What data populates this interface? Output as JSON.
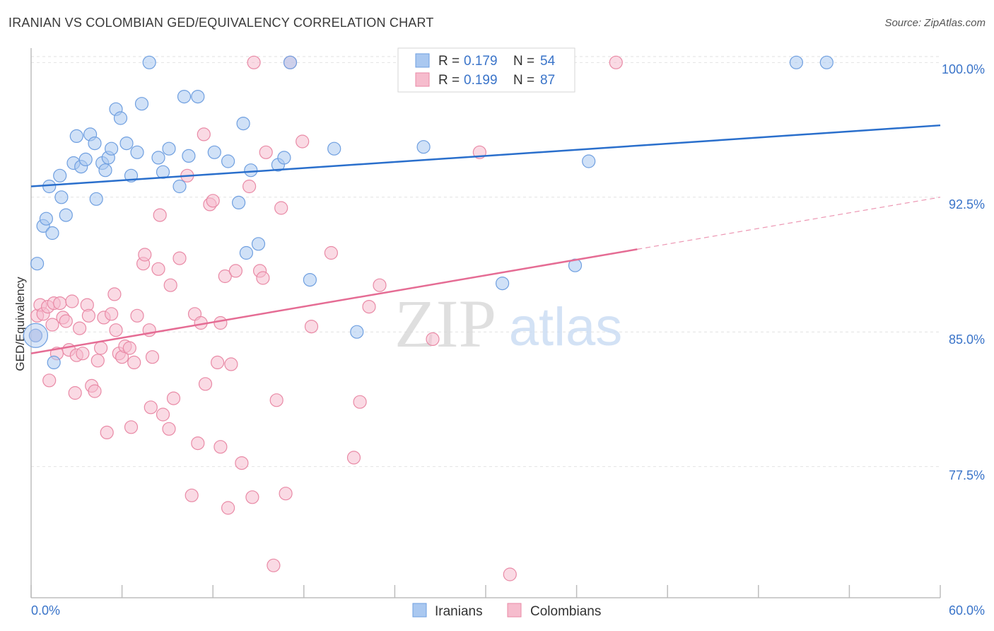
{
  "header": {
    "title": "IRANIAN VS COLOMBIAN GED/EQUIVALENCY CORRELATION CHART",
    "source": "Source: ZipAtlas.com"
  },
  "watermark": {
    "zip": "ZIP",
    "atlas": "atlas"
  },
  "legend_top": {
    "rows": [
      {
        "r_label": "R = ",
        "r_value": "0.179",
        "n_label": "N = ",
        "n_value": "54"
      },
      {
        "r_label": "R = ",
        "r_value": "0.199",
        "n_label": "N = ",
        "n_value": "87"
      }
    ]
  },
  "legend_bottom": {
    "items": [
      "Iranians",
      "Colombians"
    ]
  },
  "colors": {
    "blue_fill": "#aac8f0",
    "blue_stroke": "#6f9fe0",
    "blue_line": "#2a6fcc",
    "pink_fill": "#f6bccd",
    "pink_stroke": "#e98aa6",
    "pink_line": "#e56c94",
    "label_blue": "#3a74c9",
    "grid": "#e2e2e2"
  },
  "chart_data": {
    "type": "scatter",
    "title": "IRANIAN VS COLOMBIAN GED/EQUIVALENCY CORRELATION CHART",
    "xlabel": "",
    "ylabel": "GED/Equivalency",
    "xlim": [
      0,
      60
    ],
    "ylim": [
      70.2,
      100.8
    ],
    "x_tick_labels": [
      "0.0%",
      "60.0%"
    ],
    "y_ticks": [
      77.5,
      85.0,
      92.5,
      100.0
    ],
    "y_tick_labels": [
      "77.5%",
      "85.0%",
      "92.5%",
      "100.0%"
    ],
    "grid": true,
    "legend_position": "top-center",
    "series": [
      {
        "name": "Iranians",
        "R": 0.179,
        "N": 54,
        "trend": {
          "x": [
            0,
            60
          ],
          "y": [
            93.1,
            96.5
          ]
        },
        "points": [
          [
            0.4,
            88.8
          ],
          [
            0.8,
            90.9
          ],
          [
            1.0,
            91.3
          ],
          [
            1.2,
            93.1
          ],
          [
            1.4,
            90.5
          ],
          [
            1.5,
            83.3
          ],
          [
            1.9,
            93.7
          ],
          [
            2.0,
            92.5
          ],
          [
            2.3,
            91.5
          ],
          [
            2.8,
            94.4
          ],
          [
            3.0,
            95.9
          ],
          [
            3.3,
            94.2
          ],
          [
            3.6,
            94.6
          ],
          [
            3.9,
            96.0
          ],
          [
            4.2,
            95.5
          ],
          [
            4.3,
            92.4
          ],
          [
            4.7,
            94.4
          ],
          [
            4.9,
            94.0
          ],
          [
            5.1,
            94.7
          ],
          [
            5.3,
            95.2
          ],
          [
            5.6,
            97.4
          ],
          [
            5.9,
            96.9
          ],
          [
            6.3,
            95.5
          ],
          [
            6.6,
            93.7
          ],
          [
            7.0,
            95.0
          ],
          [
            7.3,
            97.7
          ],
          [
            7.8,
            100.0
          ],
          [
            8.4,
            94.7
          ],
          [
            8.7,
            93.9
          ],
          [
            9.1,
            95.2
          ],
          [
            9.8,
            93.1
          ],
          [
            10.1,
            98.1
          ],
          [
            10.4,
            94.8
          ],
          [
            11.0,
            98.1
          ],
          [
            12.1,
            95.0
          ],
          [
            13.0,
            94.5
          ],
          [
            13.7,
            92.2
          ],
          [
            14.0,
            96.6
          ],
          [
            14.5,
            94.0
          ],
          [
            15.0,
            89.9
          ],
          [
            14.2,
            89.4
          ],
          [
            16.3,
            94.3
          ],
          [
            16.7,
            94.7
          ],
          [
            17.1,
            100.0
          ],
          [
            18.4,
            87.9
          ],
          [
            20.0,
            95.2
          ],
          [
            21.5,
            85.0
          ],
          [
            25.9,
            95.3
          ],
          [
            31.1,
            87.7
          ],
          [
            35.9,
            88.7
          ],
          [
            36.8,
            94.5
          ],
          [
            50.5,
            100.0
          ],
          [
            52.5,
            100.0
          ],
          [
            0.3,
            84.8
          ]
        ]
      },
      {
        "name": "Colombians",
        "R": 0.199,
        "N": 87,
        "trend": {
          "x": [
            0,
            40
          ],
          "y": [
            83.8,
            89.6
          ]
        },
        "trend_dashed": {
          "x": [
            40,
            60
          ],
          "y": [
            89.6,
            92.5
          ]
        },
        "points": [
          [
            0.3,
            84.8
          ],
          [
            0.4,
            85.9
          ],
          [
            0.6,
            86.5
          ],
          [
            0.8,
            86.0
          ],
          [
            1.1,
            86.4
          ],
          [
            1.2,
            82.3
          ],
          [
            1.4,
            85.4
          ],
          [
            1.5,
            86.6
          ],
          [
            1.7,
            83.8
          ],
          [
            1.9,
            86.6
          ],
          [
            2.1,
            85.8
          ],
          [
            2.3,
            85.6
          ],
          [
            2.5,
            84.0
          ],
          [
            2.7,
            86.7
          ],
          [
            2.9,
            81.6
          ],
          [
            3.0,
            83.7
          ],
          [
            3.2,
            85.2
          ],
          [
            3.4,
            83.8
          ],
          [
            3.7,
            86.5
          ],
          [
            3.8,
            85.9
          ],
          [
            4.0,
            82.0
          ],
          [
            4.2,
            81.7
          ],
          [
            4.4,
            83.4
          ],
          [
            4.6,
            84.1
          ],
          [
            4.8,
            85.8
          ],
          [
            5.0,
            79.4
          ],
          [
            5.3,
            86.0
          ],
          [
            5.5,
            87.1
          ],
          [
            5.6,
            85.1
          ],
          [
            5.8,
            83.8
          ],
          [
            6.0,
            83.6
          ],
          [
            6.2,
            84.2
          ],
          [
            6.5,
            84.1
          ],
          [
            6.6,
            79.7
          ],
          [
            6.8,
            83.3
          ],
          [
            7.0,
            85.9
          ],
          [
            7.4,
            88.8
          ],
          [
            7.5,
            89.3
          ],
          [
            7.8,
            85.1
          ],
          [
            7.9,
            80.8
          ],
          [
            8.0,
            83.6
          ],
          [
            8.4,
            88.5
          ],
          [
            8.5,
            91.5
          ],
          [
            8.7,
            80.4
          ],
          [
            9.1,
            79.6
          ],
          [
            9.2,
            87.6
          ],
          [
            9.4,
            81.3
          ],
          [
            9.8,
            89.1
          ],
          [
            10.3,
            93.7
          ],
          [
            10.6,
            75.9
          ],
          [
            10.8,
            86.0
          ],
          [
            11.0,
            78.8
          ],
          [
            11.2,
            85.5
          ],
          [
            11.5,
            82.1
          ],
          [
            11.4,
            96.0
          ],
          [
            11.8,
            92.1
          ],
          [
            12.0,
            92.3
          ],
          [
            12.3,
            83.3
          ],
          [
            12.5,
            85.5
          ],
          [
            12.8,
            88.1
          ],
          [
            13.0,
            75.2
          ],
          [
            13.2,
            83.2
          ],
          [
            13.5,
            88.4
          ],
          [
            13.9,
            77.7
          ],
          [
            14.4,
            93.1
          ],
          [
            14.6,
            75.8
          ],
          [
            15.1,
            88.4
          ],
          [
            15.3,
            88.0
          ],
          [
            15.5,
            95.0
          ],
          [
            16.0,
            72.0
          ],
          [
            16.2,
            81.2
          ],
          [
            16.5,
            91.9
          ],
          [
            16.8,
            76.0
          ],
          [
            17.1,
            100.0
          ],
          [
            17.9,
            95.6
          ],
          [
            18.5,
            85.3
          ],
          [
            19.8,
            89.4
          ],
          [
            21.3,
            78.0
          ],
          [
            21.7,
            81.1
          ],
          [
            22.3,
            86.4
          ],
          [
            23.0,
            87.6
          ],
          [
            26.5,
            84.6
          ],
          [
            29.6,
            95.0
          ],
          [
            31.6,
            71.5
          ],
          [
            38.6,
            100.0
          ],
          [
            12.5,
            78.6
          ],
          [
            14.7,
            100.0
          ]
        ]
      }
    ]
  }
}
